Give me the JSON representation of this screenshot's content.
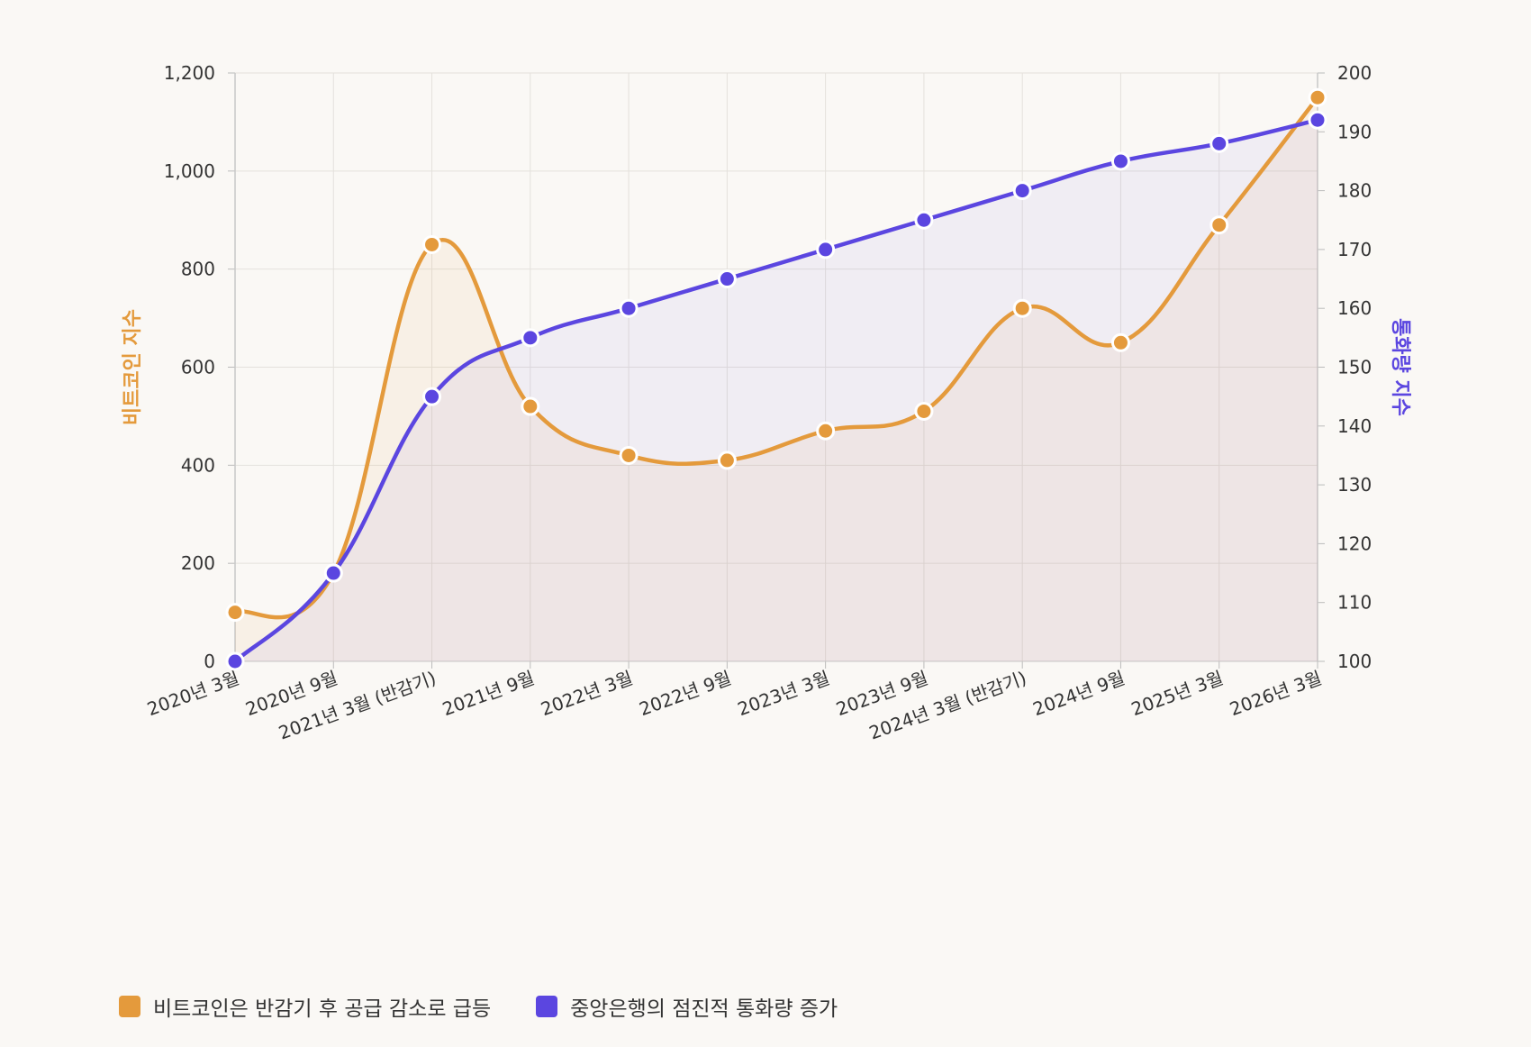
{
  "chart_data": {
    "type": "line",
    "categories": [
      "2020년 3월",
      "2020년 9월",
      "2021년 3월 (반감기)",
      "2021년 9월",
      "2022년 3월",
      "2022년 9월",
      "2023년 3월",
      "2023년 9월",
      "2024년 3월 (반감기)",
      "2024년 9월",
      "2025년 3월",
      "2026년 3월"
    ],
    "series": [
      {
        "name": "비트코인은 반감기 후 공급 감소로 급등",
        "axis": "left",
        "color": "#e49a3c",
        "values": [
          100,
          180,
          850,
          520,
          420,
          410,
          470,
          510,
          720,
          650,
          890,
          1150
        ]
      },
      {
        "name": "중앙은행의 점진적 통화량 증가",
        "axis": "right",
        "color": "#5b46e0",
        "values": [
          100,
          115,
          145,
          155,
          160,
          165,
          170,
          175,
          180,
          185,
          188,
          192
        ]
      }
    ],
    "ylabel": "비트코인 지수",
    "ylabel_right": "통화량 지수",
    "ylim": [
      0,
      1200
    ],
    "ylim_right": [
      100,
      200
    ],
    "yticks": [
      "0",
      "200",
      "400",
      "600",
      "800",
      "1,000",
      "1,200"
    ],
    "yticks_right": [
      "100",
      "110",
      "120",
      "130",
      "140",
      "150",
      "160",
      "170",
      "180",
      "190",
      "200"
    ],
    "grid": true,
    "legend_position": "bottom-left"
  }
}
